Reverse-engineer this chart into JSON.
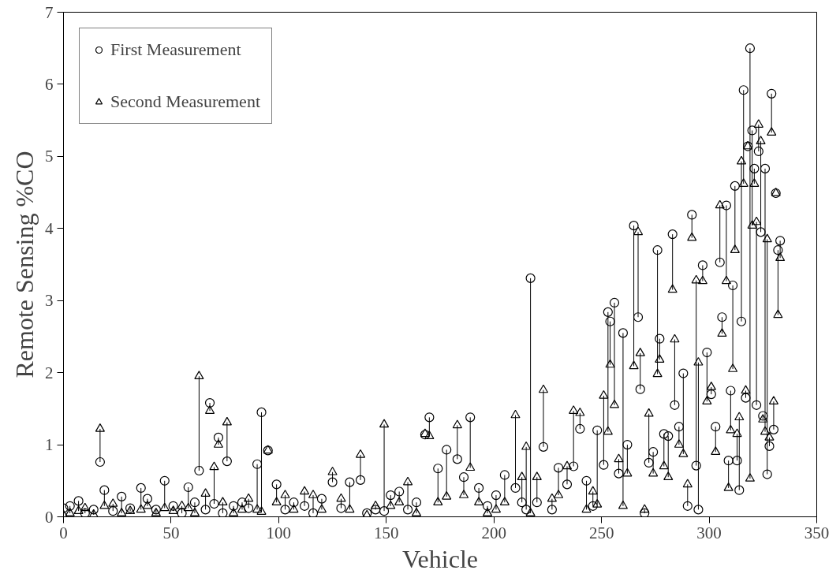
{
  "chart_data": {
    "type": "scatter",
    "xlabel": "Vehicle",
    "ylabel": "Remote Sensing %CO",
    "xlim": [
      0,
      350
    ],
    "ylim": [
      0,
      7
    ],
    "xticks": [
      0,
      50,
      100,
      150,
      200,
      250,
      300,
      350
    ],
    "yticks": [
      0,
      1,
      2,
      3,
      4,
      5,
      6,
      7
    ],
    "grid": false,
    "legend": "top left",
    "x": [
      0,
      3,
      7,
      10,
      14,
      17,
      19,
      23,
      27,
      31,
      36,
      39,
      43,
      47,
      51,
      55,
      58,
      61,
      63,
      66,
      68,
      70,
      72,
      74,
      76,
      79,
      83,
      86,
      90,
      92,
      95,
      99,
      103,
      107,
      112,
      116,
      120,
      125,
      129,
      133,
      138,
      141,
      145,
      149,
      152,
      156,
      160,
      164,
      168,
      170,
      174,
      178,
      183,
      186,
      189,
      193,
      197,
      201,
      205,
      210,
      213,
      215,
      217,
      220,
      223,
      227,
      230,
      234,
      237,
      240,
      243,
      246,
      248,
      251,
      253,
      254,
      256,
      258,
      260,
      262,
      265,
      267,
      268,
      270,
      272,
      274,
      276,
      277,
      279,
      281,
      283,
      284,
      286,
      288,
      290,
      292,
      294,
      295,
      297,
      299,
      301,
      303,
      305,
      306,
      308,
      309,
      310,
      311,
      312,
      313,
      314,
      315,
      316,
      317,
      318,
      319,
      320,
      321,
      322,
      323,
      324,
      325,
      326,
      327,
      328,
      329,
      330,
      331,
      332,
      333
    ],
    "series": [
      {
        "name": "First Measurement",
        "color": "#000000",
        "marker": "circle",
        "errors": [
          [
            0.02,
            0.12
          ],
          [
            0.05,
            0.15
          ],
          [
            0.08,
            0.22
          ],
          [
            0.05,
            0.12
          ],
          [
            0.03,
            0.1
          ],
          [
            0.76,
            1.22
          ],
          [
            0.15,
            0.37
          ],
          [
            0.08,
            0.18
          ],
          [
            0.05,
            0.28
          ],
          [
            0.08,
            0.12
          ],
          [
            0.1,
            0.4
          ],
          [
            0.15,
            0.25
          ],
          [
            0.05,
            0.1
          ],
          [
            0.12,
            0.5
          ],
          [
            0.08,
            0.15
          ],
          [
            0.05,
            0.15
          ],
          [
            0.12,
            0.41
          ],
          [
            0.05,
            0.2
          ],
          [
            0.64,
            1.95
          ],
          [
            0.1,
            0.32
          ],
          [
            1.47,
            1.58
          ],
          [
            0.18,
            0.69
          ],
          [
            1.0,
            1.1
          ],
          [
            0.05,
            0.2
          ],
          [
            0.77,
            1.31
          ],
          [
            0.05,
            0.15
          ],
          [
            0.1,
            0.2
          ],
          [
            0.12,
            0.25
          ],
          [
            0.1,
            0.73
          ],
          [
            0.07,
            1.45
          ],
          null,
          [
            0.2,
            0.45
          ],
          [
            0.1,
            0.3
          ],
          [
            0.1,
            0.2
          ],
          [
            0.15,
            0.35
          ],
          [
            0.05,
            0.3
          ],
          [
            0.1,
            0.25
          ],
          [
            0.48,
            0.62
          ],
          [
            0.12,
            0.25
          ],
          [
            0.1,
            0.48
          ],
          [
            0.51,
            0.86
          ],
          null,
          [
            0.1,
            0.15
          ],
          [
            0.08,
            1.28
          ],
          [
            0.15,
            0.3
          ],
          [
            0.2,
            0.35
          ],
          [
            0.1,
            0.48
          ],
          [
            0.05,
            0.2
          ],
          null,
          [
            1.12,
            1.38
          ],
          [
            0.2,
            0.67
          ],
          [
            0.28,
            0.93
          ],
          [
            0.8,
            1.27
          ],
          [
            0.3,
            0.55
          ],
          [
            0.68,
            1.38
          ],
          [
            0.2,
            0.4
          ],
          [
            0.05,
            0.15
          ],
          [
            0.1,
            0.3
          ],
          [
            0.2,
            0.58
          ],
          [
            0.4,
            1.41
          ],
          [
            0.2,
            0.55
          ],
          [
            0.1,
            0.97
          ],
          [
            0.05,
            3.31
          ],
          [
            0.2,
            0.55
          ],
          [
            0.97,
            1.76
          ],
          [
            0.1,
            0.25
          ],
          [
            0.3,
            0.68
          ],
          [
            0.45,
            0.7
          ],
          [
            0.7,
            1.47
          ],
          [
            1.22,
            1.44
          ],
          [
            0.1,
            0.5
          ],
          [
            0.15,
            0.35
          ],
          [
            0.17,
            1.2
          ],
          [
            0.72,
            1.68
          ],
          [
            1.18,
            2.84
          ],
          [
            2.11,
            2.71
          ],
          [
            1.55,
            2.97
          ],
          [
            0.6,
            0.8
          ],
          [
            0.15,
            2.55
          ],
          [
            0.6,
            1.0
          ],
          [
            2.09,
            4.04
          ],
          [
            2.77,
            3.95
          ],
          [
            1.77,
            2.27
          ],
          [
            0.05,
            0.1
          ],
          [
            0.75,
            1.43
          ],
          [
            0.6,
            0.9
          ],
          [
            1.98,
            3.7
          ],
          [
            2.18,
            2.47
          ],
          [
            0.7,
            1.15
          ],
          [
            0.55,
            1.12
          ],
          [
            3.15,
            3.92
          ],
          [
            1.55,
            2.46
          ],
          [
            1.0,
            1.25
          ],
          [
            0.87,
            1.99
          ],
          [
            0.15,
            0.45
          ],
          [
            3.87,
            4.19
          ],
          [
            0.71,
            3.28
          ],
          [
            0.1,
            2.14
          ],
          [
            3.27,
            3.49
          ],
          [
            1.6,
            2.28
          ],
          [
            1.7,
            1.8
          ],
          [
            0.9,
            1.25
          ],
          [
            3.53,
            4.32
          ],
          [
            2.54,
            2.77
          ],
          [
            3.27,
            4.32
          ],
          [
            0.4,
            0.78
          ],
          [
            1.2,
            1.75
          ],
          [
            2.05,
            3.21
          ],
          [
            3.7,
            4.59
          ],
          [
            0.78,
            1.15
          ],
          [
            0.37,
            1.38
          ],
          [
            2.71,
            4.93
          ],
          [
            4.62,
            5.92
          ],
          [
            1.65,
            1.75
          ],
          null,
          [
            0.53,
            6.5
          ],
          [
            4.04,
            5.36
          ],
          [
            4.62,
            4.83
          ],
          [
            1.55,
            4.09
          ],
          [
            5.07,
            5.44
          ],
          [
            3.95,
            5.21
          ],
          [
            1.35,
            1.4
          ],
          [
            1.18,
            4.83
          ],
          [
            0.59,
            3.85
          ],
          [
            0.98,
            1.1
          ],
          [
            5.33,
            5.87
          ],
          [
            1.21,
            1.6
          ],
          null,
          [
            2.8,
            3.7
          ],
          [
            3.59,
            3.83
          ]
        ],
        "values": [
          0.12,
          0.15,
          0.22,
          0.05,
          0.1,
          0.76,
          0.37,
          0.08,
          0.28,
          0.12,
          0.4,
          0.25,
          0.1,
          0.5,
          0.15,
          0.05,
          0.41,
          0.2,
          0.64,
          0.1,
          1.58,
          0.18,
          1.1,
          0.05,
          0.77,
          0.15,
          0.2,
          0.12,
          0.73,
          1.45,
          0.92,
          0.45,
          0.1,
          0.2,
          0.15,
          0.05,
          0.25,
          0.48,
          0.12,
          0.48,
          0.51,
          0.05,
          0.1,
          0.08,
          0.3,
          0.35,
          0.1,
          0.2,
          1.14,
          1.38,
          0.67,
          0.93,
          0.8,
          0.55,
          1.38,
          0.4,
          0.15,
          0.3,
          0.58,
          0.4,
          0.2,
          0.1,
          3.31,
          0.2,
          0.97,
          0.1,
          0.68,
          0.45,
          0.7,
          1.22,
          0.5,
          0.15,
          1.2,
          0.72,
          2.84,
          2.71,
          2.97,
          0.6,
          2.55,
          1.0,
          4.04,
          2.77,
          1.77,
          0.05,
          0.75,
          0.9,
          3.7,
          2.47,
          1.15,
          1.12,
          3.92,
          1.55,
          1.25,
          1.99,
          0.15,
          4.19,
          0.71,
          0.1,
          3.49,
          2.28,
          1.7,
          1.25,
          3.53,
          2.77,
          4.32,
          0.78,
          1.75,
          3.21,
          4.59,
          0.78,
          0.37,
          2.71,
          5.92,
          1.65,
          5.14,
          6.5,
          5.36,
          4.83,
          1.55,
          5.07,
          3.95,
          1.4,
          4.83,
          0.59,
          0.98,
          5.87,
          1.21,
          4.49,
          3.7,
          3.83
        ]
      },
      {
        "name": "Second Measurement",
        "color": "#000000",
        "marker": "triangle",
        "values": [
          0.02,
          0.05,
          0.08,
          0.12,
          0.03,
          1.22,
          0.15,
          0.18,
          0.05,
          0.08,
          0.1,
          0.15,
          0.05,
          0.12,
          0.08,
          0.15,
          0.12,
          0.05,
          1.95,
          0.32,
          1.47,
          0.69,
          1.0,
          0.2,
          1.31,
          0.05,
          0.1,
          0.25,
          0.1,
          0.07,
          0.92,
          0.2,
          0.3,
          0.1,
          0.35,
          0.3,
          0.1,
          0.62,
          0.25,
          0.1,
          0.86,
          0.02,
          0.15,
          1.28,
          0.15,
          0.2,
          0.48,
          0.05,
          1.15,
          1.12,
          0.2,
          0.28,
          1.27,
          0.3,
          0.68,
          0.2,
          0.05,
          0.1,
          0.2,
          1.41,
          0.55,
          0.97,
          0.05,
          0.55,
          1.76,
          0.25,
          0.3,
          0.7,
          1.47,
          1.44,
          0.1,
          0.35,
          0.17,
          1.68,
          1.18,
          2.11,
          1.55,
          0.8,
          0.15,
          0.6,
          2.09,
          3.95,
          2.27,
          0.1,
          1.43,
          0.6,
          1.98,
          2.18,
          0.7,
          0.55,
          3.15,
          2.46,
          1.0,
          0.87,
          0.45,
          3.87,
          3.28,
          2.14,
          3.27,
          1.6,
          1.8,
          0.9,
          4.32,
          2.54,
          3.27,
          0.4,
          1.2,
          2.05,
          3.7,
          1.15,
          1.38,
          4.93,
          4.62,
          1.75,
          5.14,
          0.53,
          4.04,
          4.62,
          4.09,
          5.44,
          5.21,
          1.35,
          1.18,
          3.85,
          1.1,
          5.33,
          1.6,
          4.49,
          2.8,
          3.59
        ]
      }
    ]
  }
}
